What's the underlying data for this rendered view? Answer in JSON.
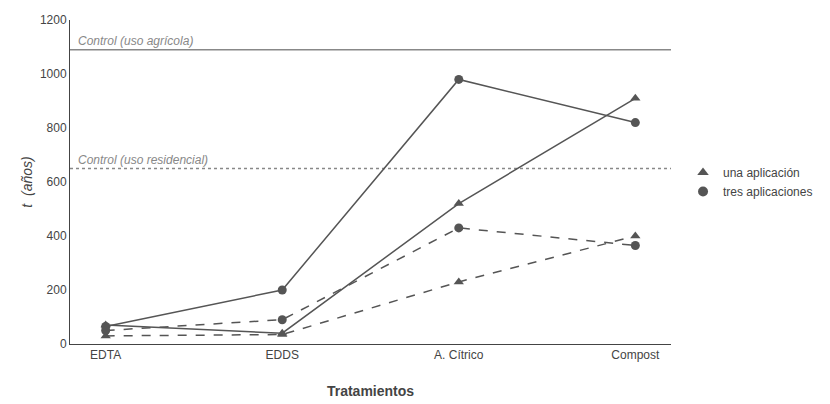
{
  "chart_data": {
    "type": "line",
    "xlabel": "Tratamientos",
    "ylabel": "t  (años)",
    "categories": [
      "EDTA",
      "EDDS",
      "A. Cítrico",
      "Compost"
    ],
    "series": [
      {
        "name": "una aplicación",
        "values": [
          70,
          40,
          520,
          910
        ],
        "color": "#555555",
        "marker": "triangle",
        "line_style": "solid"
      },
      {
        "name": "tres aplicaciones",
        "values": [
          65,
          200,
          980,
          820
        ],
        "color": "#555555",
        "marker": "circle",
        "line_style": "solid"
      },
      {
        "name": "una aplicación",
        "values": [
          30,
          35,
          230,
          400
        ],
        "color": "#555555",
        "marker": "triangle",
        "line_style": "dashed"
      },
      {
        "name": "tres aplicaciones",
        "values": [
          50,
          90,
          430,
          365
        ],
        "color": "#555555",
        "marker": "circle",
        "line_style": "dashed"
      }
    ],
    "hlines": [
      {
        "y": 1090,
        "label": "Control (uso agrícola)",
        "color": "#888888",
        "line_style": "solid"
      },
      {
        "y": 650,
        "label": "Control (uso residencial)",
        "color": "#888888",
        "line_style": "dotted"
      }
    ],
    "ylim": [
      0,
      1200
    ],
    "yticks": [
      0,
      200,
      400,
      600,
      800,
      1000,
      1200
    ],
    "grid": false,
    "legend": "right"
  }
}
